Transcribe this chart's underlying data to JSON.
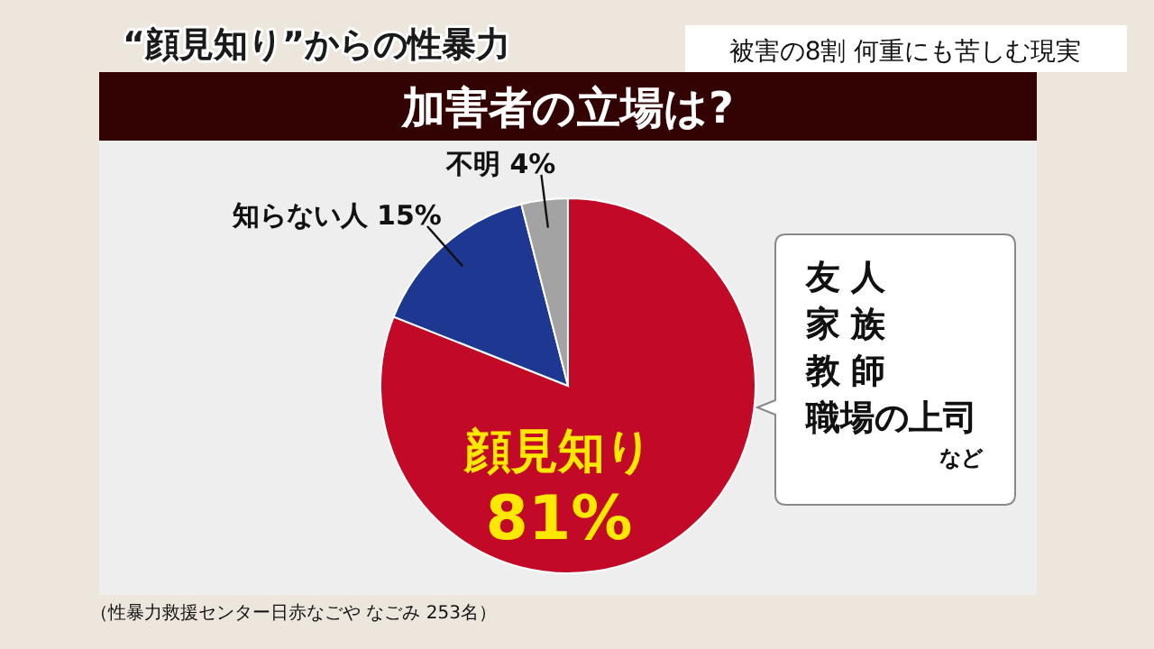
{
  "chart_data": {
    "type": "pie",
    "title": "加害者の立場は?",
    "subtitle": "“顔見知り”からの性暴力",
    "categories": [
      "顔見知り",
      "知らない人",
      "不明"
    ],
    "values": [
      81,
      15,
      4
    ],
    "value_labels": [
      "81%",
      "15%",
      "4%"
    ],
    "colors": [
      "#c20a28",
      "#1e3891",
      "#a3a3a3"
    ],
    "annotations": [
      "被害の8割  何重にも苦しむ現実",
      "（性暴力救援センター日赤なごや なごみ 253名）",
      "友人",
      "家族",
      "教師",
      "職場の上司",
      "など"
    ]
  }
}
